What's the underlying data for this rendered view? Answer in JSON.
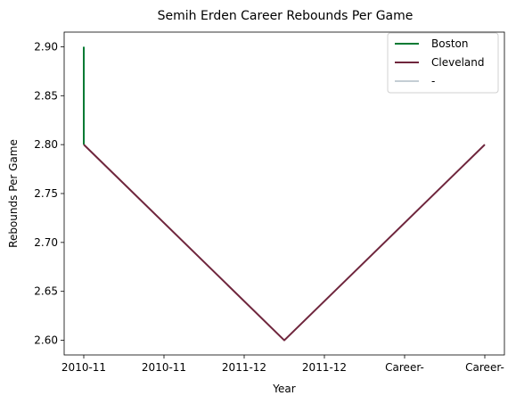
{
  "chart_data": {
    "type": "line",
    "title": "Semih Erden Career Rebounds Per Game",
    "xlabel": "Year",
    "ylabel": "Rebounds Per Game",
    "categories": [
      "2010-11",
      "2010-11",
      "2011-12",
      "2011-12",
      "Career-",
      "Career-"
    ],
    "yticks": [
      "2.60",
      "2.65",
      "2.70",
      "2.75",
      "2.80",
      "2.85",
      "2.90"
    ],
    "ylim": [
      2.585,
      2.915
    ],
    "grid": false,
    "legend_position": "top-right",
    "series": [
      {
        "name": "Boston",
        "color": "#007A33",
        "points": [
          [
            0,
            2.9
          ],
          [
            0,
            2.8
          ]
        ]
      },
      {
        "name": "Cleveland",
        "color": "#6F263D",
        "points": [
          [
            0,
            2.8
          ],
          [
            2.5,
            2.6
          ],
          [
            5,
            2.8
          ]
        ]
      },
      {
        "name": "-",
        "color": "#C4CED4",
        "points": []
      }
    ]
  }
}
